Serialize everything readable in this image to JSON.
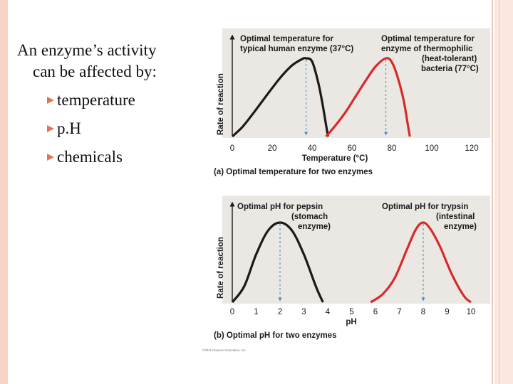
{
  "slide": {
    "heading_line1": "An enzyme’s activity",
    "heading_line2": "can be affected by:",
    "bullets": [
      "temperature",
      "p.H",
      "chemicals"
    ],
    "colors": {
      "frame": "#f6d3c5",
      "bullet": "#e07858"
    }
  },
  "figure": {
    "copyright": "©2011 Pearson Education, Inc.",
    "colors": {
      "panel": "#ebe7e2",
      "curve_a": "#1a1a1a",
      "curve_b": "#d62b2b",
      "guide": "#3b8fcf"
    }
  },
  "chart_data": [
    {
      "type": "line",
      "caption": "(a) Optimal temperature for two enzymes",
      "xlabel": "Temperature (°C)",
      "ylabel": "Rate of reaction",
      "xlim": [
        0,
        120
      ],
      "xticks": [
        0,
        20,
        40,
        60,
        80,
        100,
        120
      ],
      "grid": false,
      "series": [
        {
          "annotation": [
            "Optimal temperature for",
            "typical human enzyme (37°C)"
          ],
          "optimum": 37,
          "x": [
            0,
            5,
            10,
            15,
            20,
            25,
            30,
            35,
            37,
            40,
            43,
            45,
            47,
            48
          ],
          "y": [
            0,
            0.12,
            0.28,
            0.45,
            0.62,
            0.78,
            0.91,
            0.99,
            1.0,
            0.96,
            0.7,
            0.45,
            0.15,
            0
          ]
        },
        {
          "annotation": [
            "Optimal temperature for",
            "enzyme of thermophilic",
            "(heat-tolerant)",
            "bacteria (77°C)"
          ],
          "optimum": 77,
          "x": [
            47,
            52,
            57,
            62,
            67,
            72,
            77,
            80,
            83,
            86,
            88,
            89
          ],
          "y": [
            0,
            0.15,
            0.32,
            0.52,
            0.72,
            0.9,
            1.0,
            0.95,
            0.75,
            0.45,
            0.15,
            0
          ]
        }
      ]
    },
    {
      "type": "line",
      "caption": "(b) Optimal pH for two enzymes",
      "xlabel": "pH",
      "ylabel": "Rate of reaction",
      "xlim": [
        0,
        10
      ],
      "xticks": [
        0,
        1,
        2,
        3,
        4,
        5,
        6,
        7,
        8,
        9,
        10
      ],
      "grid": false,
      "series": [
        {
          "annotation": [
            "Optimal pH for pepsin",
            "(stomach",
            "enzyme)"
          ],
          "optimum": 2,
          "x": [
            0,
            0.5,
            1,
            1.5,
            2,
            2.5,
            3,
            3.5,
            3.8
          ],
          "y": [
            0,
            0.2,
            0.6,
            0.9,
            1.0,
            0.9,
            0.6,
            0.2,
            0
          ]
        },
        {
          "annotation": [
            "Optimal pH for trypsin",
            "(intestinal",
            "enzyme)"
          ],
          "optimum": 8,
          "x": [
            5.8,
            6.3,
            6.8,
            7.3,
            7.7,
            8,
            8.3,
            8.7,
            9.2,
            9.7,
            10
          ],
          "y": [
            0,
            0.1,
            0.3,
            0.65,
            0.92,
            1.0,
            0.92,
            0.7,
            0.35,
            0.08,
            0
          ]
        }
      ]
    }
  ]
}
